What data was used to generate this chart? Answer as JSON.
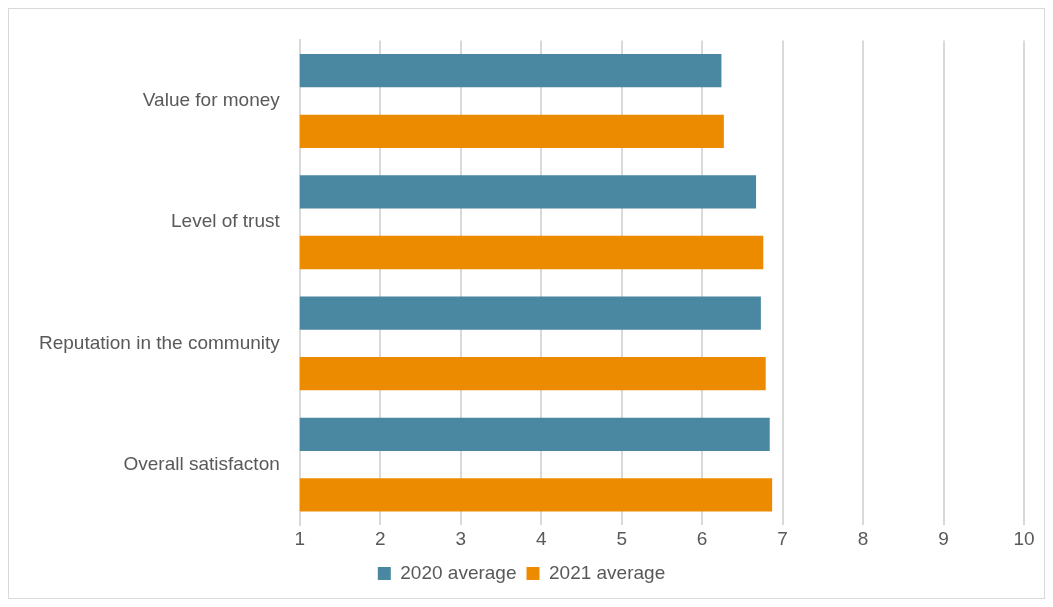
{
  "chart_data": {
    "type": "bar",
    "orientation": "horizontal",
    "categories": [
      "Value for money",
      "Level of trust",
      "Reputation in the community",
      "Overall satisfacton"
    ],
    "series": [
      {
        "name": "2020 average",
        "color": "#4a87a0",
        "values": [
          6.24,
          6.67,
          6.73,
          6.84
        ]
      },
      {
        "name": "2021 average",
        "color": "#ed8b00",
        "values": [
          6.27,
          6.76,
          6.79,
          6.87
        ]
      }
    ],
    "xlim": [
      1,
      10
    ],
    "xticks": [
      1,
      2,
      3,
      4,
      5,
      6,
      7,
      8,
      9,
      10
    ],
    "grid": "x",
    "legend": "bottom"
  }
}
